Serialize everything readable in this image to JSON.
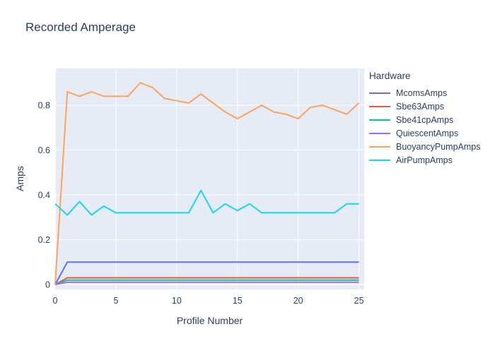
{
  "page_title": "Recorded Amperage",
  "chart_data": {
    "type": "line",
    "title": "Recorded Amperage",
    "xlabel": "Profile Number",
    "ylabel": "Amps",
    "legend_title": "Hardware",
    "legend_position": "right",
    "plot_bg_color": "#e5ecf6",
    "grid_color": "#ffffff",
    "text_color": "#2a3f5f",
    "grid": true,
    "xlim": [
      0,
      25.43
    ],
    "ylim": [
      -0.022,
      0.964
    ],
    "xticks": [
      0,
      5,
      10,
      15,
      20,
      25
    ],
    "yticks": [
      0,
      0.2,
      0.4,
      0.6,
      0.8
    ],
    "x": [
      0,
      1,
      2,
      3,
      4,
      5,
      6,
      7,
      8,
      9,
      10,
      11,
      12,
      13,
      14,
      15,
      16,
      17,
      18,
      19,
      20,
      21,
      22,
      23,
      24,
      25
    ],
    "series": [
      {
        "name": "McomsAmps",
        "color": "#636EFA",
        "values": [
          0,
          0.1,
          0.1,
          0.1,
          0.1,
          0.1,
          0.1,
          0.1,
          0.1,
          0.1,
          0.1,
          0.1,
          0.1,
          0.1,
          0.1,
          0.1,
          0.1,
          0.1,
          0.1,
          0.1,
          0.1,
          0.1,
          0.1,
          0.1,
          0.1,
          0.1
        ]
      },
      {
        "name": "Sbe63Amps",
        "color": "#EF553B",
        "values": [
          0,
          0.03,
          0.03,
          0.03,
          0.03,
          0.03,
          0.03,
          0.03,
          0.03,
          0.03,
          0.03,
          0.03,
          0.03,
          0.03,
          0.03,
          0.03,
          0.03,
          0.03,
          0.03,
          0.03,
          0.03,
          0.03,
          0.03,
          0.03,
          0.03,
          0.03
        ]
      },
      {
        "name": "Sbe41cpAmps",
        "color": "#00CC96",
        "values": [
          0,
          0.02,
          0.02,
          0.02,
          0.02,
          0.02,
          0.02,
          0.02,
          0.02,
          0.02,
          0.02,
          0.02,
          0.02,
          0.02,
          0.02,
          0.02,
          0.02,
          0.02,
          0.02,
          0.02,
          0.02,
          0.02,
          0.02,
          0.02,
          0.02,
          0.02
        ]
      },
      {
        "name": "QuiescentAmps",
        "color": "#AB63FA",
        "values": [
          0,
          0.01,
          0.01,
          0.01,
          0.01,
          0.01,
          0.01,
          0.01,
          0.01,
          0.01,
          0.01,
          0.01,
          0.01,
          0.01,
          0.01,
          0.01,
          0.01,
          0.01,
          0.01,
          0.01,
          0.01,
          0.01,
          0.01,
          0.01,
          0.01,
          0.01
        ]
      },
      {
        "name": "BuoyancyPumpAmps",
        "color": "#FFA15A",
        "values": [
          0,
          0.86,
          0.84,
          0.86,
          0.84,
          0.84,
          0.84,
          0.9,
          0.88,
          0.83,
          0.82,
          0.81,
          0.85,
          0.81,
          0.77,
          0.74,
          0.77,
          0.8,
          0.77,
          0.76,
          0.74,
          0.79,
          0.8,
          0.78,
          0.76,
          0.81
        ]
      },
      {
        "name": "AirPumpAmps",
        "color": "#19D3F3",
        "values": [
          0.36,
          0.31,
          0.37,
          0.31,
          0.35,
          0.32,
          0.32,
          0.32,
          0.32,
          0.32,
          0.32,
          0.32,
          0.42,
          0.32,
          0.36,
          0.33,
          0.36,
          0.32,
          0.32,
          0.32,
          0.32,
          0.32,
          0.32,
          0.32,
          0.36,
          0.36
        ]
      }
    ]
  }
}
